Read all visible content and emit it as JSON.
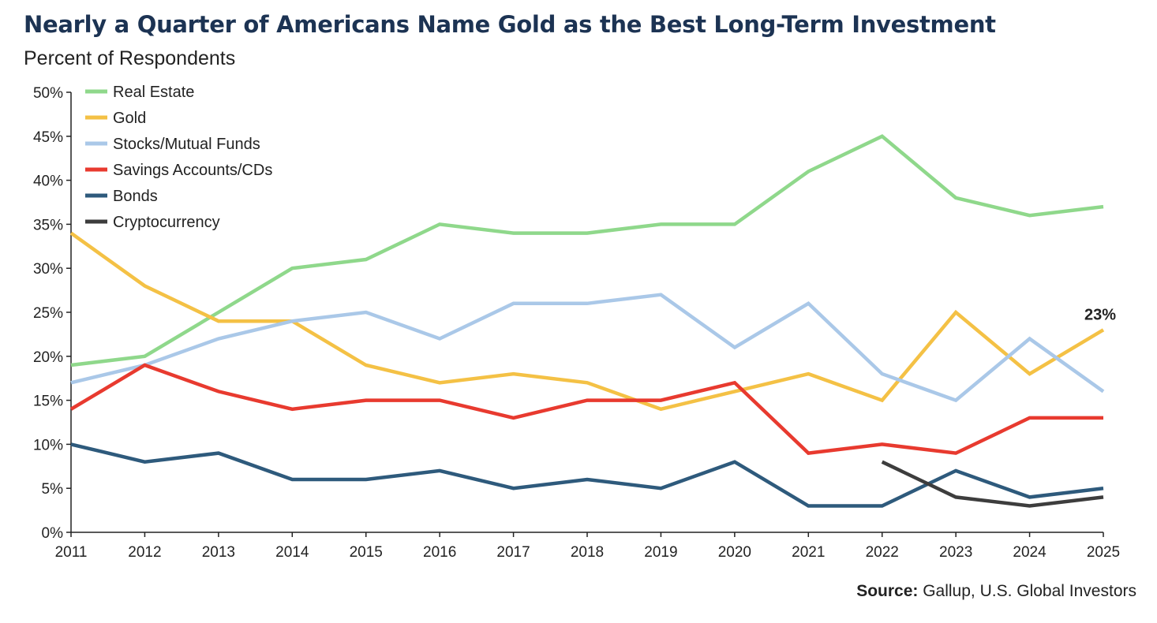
{
  "title": "Nearly a Quarter of Americans Name Gold as the Best Long-Term Investment",
  "subtitle": "Percent of Respondents",
  "source": {
    "label": "Source:",
    "text": " Gallup, U.S. Global Investors"
  },
  "chart_data": {
    "type": "line",
    "x": [
      2011,
      2012,
      2013,
      2014,
      2015,
      2016,
      2017,
      2018,
      2019,
      2020,
      2021,
      2022,
      2023,
      2024,
      2025
    ],
    "ylim": [
      0,
      50
    ],
    "yticks": [
      0,
      5,
      10,
      15,
      20,
      25,
      30,
      35,
      40,
      45,
      50
    ],
    "ytick_suffix": "%",
    "grid": false,
    "legend_position": "top-left",
    "series": [
      {
        "name": "Real Estate",
        "color": "#8fd88b",
        "values": [
          19,
          20,
          25,
          30,
          31,
          35,
          34,
          34,
          35,
          35,
          41,
          45,
          38,
          36,
          37
        ]
      },
      {
        "name": "Gold",
        "color": "#f4c145",
        "values": [
          34,
          28,
          24,
          24,
          19,
          17,
          18,
          17,
          14,
          16,
          18,
          15,
          25,
          18,
          23
        ],
        "end_label": "23%"
      },
      {
        "name": "Stocks/Mutual Funds",
        "color": "#aac8e8",
        "values": [
          17,
          19,
          22,
          24,
          25,
          22,
          26,
          26,
          27,
          21,
          26,
          18,
          15,
          22,
          16
        ]
      },
      {
        "name": "Savings Accounts/CDs",
        "color": "#e83a2f",
        "values": [
          14,
          19,
          16,
          14,
          15,
          15,
          13,
          15,
          15,
          17,
          9,
          10,
          9,
          13,
          13
        ]
      },
      {
        "name": "Bonds",
        "color": "#2e5a7c",
        "values": [
          10,
          8,
          9,
          6,
          6,
          7,
          5,
          6,
          5,
          8,
          3,
          3,
          7,
          4,
          5
        ]
      },
      {
        "name": "Cryptocurrency",
        "color": "#3d3d3d",
        "values": [
          null,
          null,
          null,
          null,
          null,
          null,
          null,
          null,
          null,
          null,
          null,
          8,
          4,
          3,
          4
        ]
      }
    ]
  }
}
